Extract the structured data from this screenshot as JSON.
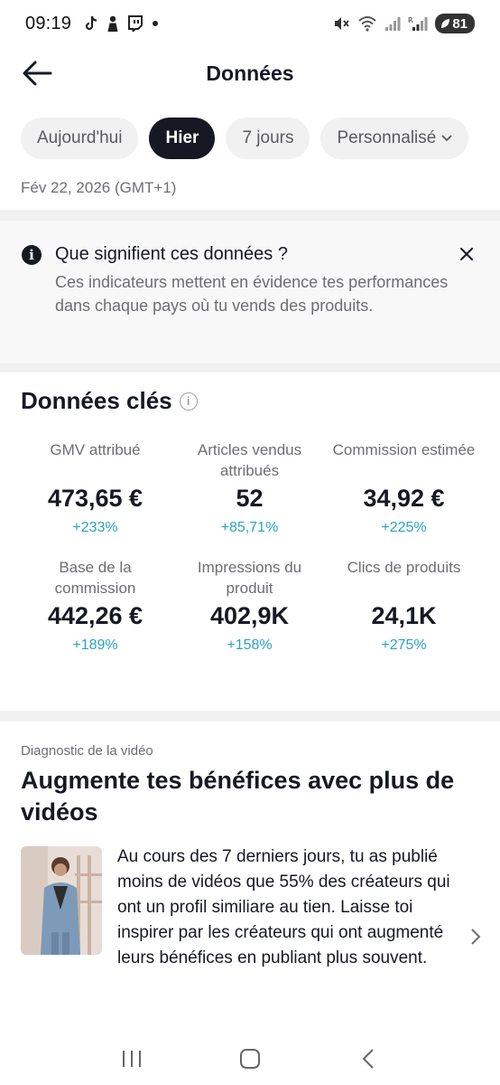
{
  "status_bar": {
    "time": "09:19",
    "left_icons": [
      "tiktok-icon",
      "person-icon",
      "twitch-icon",
      "dot-icon"
    ],
    "right_icons": [
      "mute-icon",
      "wifi-icon",
      "signal-icon",
      "signal-r-icon"
    ],
    "battery": "81"
  },
  "header": {
    "title": "Données",
    "back_icon": "arrow-left-icon"
  },
  "filters": {
    "chips": [
      {
        "label": "Aujourd'hui",
        "selected": false
      },
      {
        "label": "Hier",
        "selected": true
      },
      {
        "label": "7 jours",
        "selected": false
      },
      {
        "label": "Personnalisé",
        "selected": false
      }
    ]
  },
  "date_label": "Fév 22, 2026 (GMT+1)",
  "info_banner": {
    "title": "Que signifient ces données ?",
    "body": "Ces indicateurs mettent en évidence tes performances dans chaque pays où tu vends des produits."
  },
  "key_data": {
    "title": "Données clés",
    "metrics": [
      {
        "label": "GMV attribué",
        "value": "473,65 €",
        "change": "+233%"
      },
      {
        "label": "Articles vendus attribués",
        "value": "52",
        "change": "+85,71%"
      },
      {
        "label": "Commission estimée",
        "value": "34,92 €",
        "change": "+225%"
      },
      {
        "label": "Base de la commission",
        "value": "442,26 €",
        "change": "+189%"
      },
      {
        "label": "Impressions du produit",
        "value": "402,9K",
        "change": "+158%"
      },
      {
        "label": "Clics de produits",
        "value": "24,1K",
        "change": "+275%"
      }
    ]
  },
  "diagnostic": {
    "kicker": "Diagnostic de la vidéo",
    "title": "Augmente tes bénéfices avec plus de vidéos",
    "body": "Au cours des 7 derniers jours, tu as publié moins de vidéos que 55% des créateurs qui ont un profil similiare au tien. Laisse toi inspirer par les créateurs qui ont augmenté leurs bénéfices en publiant plus souvent."
  },
  "colors": {
    "accent_change": "#2aa3c2",
    "chip_active_bg": "#161823",
    "chip_bg": "#f1f1f2",
    "text_primary": "#161823",
    "text_secondary": "#6d6e73"
  }
}
